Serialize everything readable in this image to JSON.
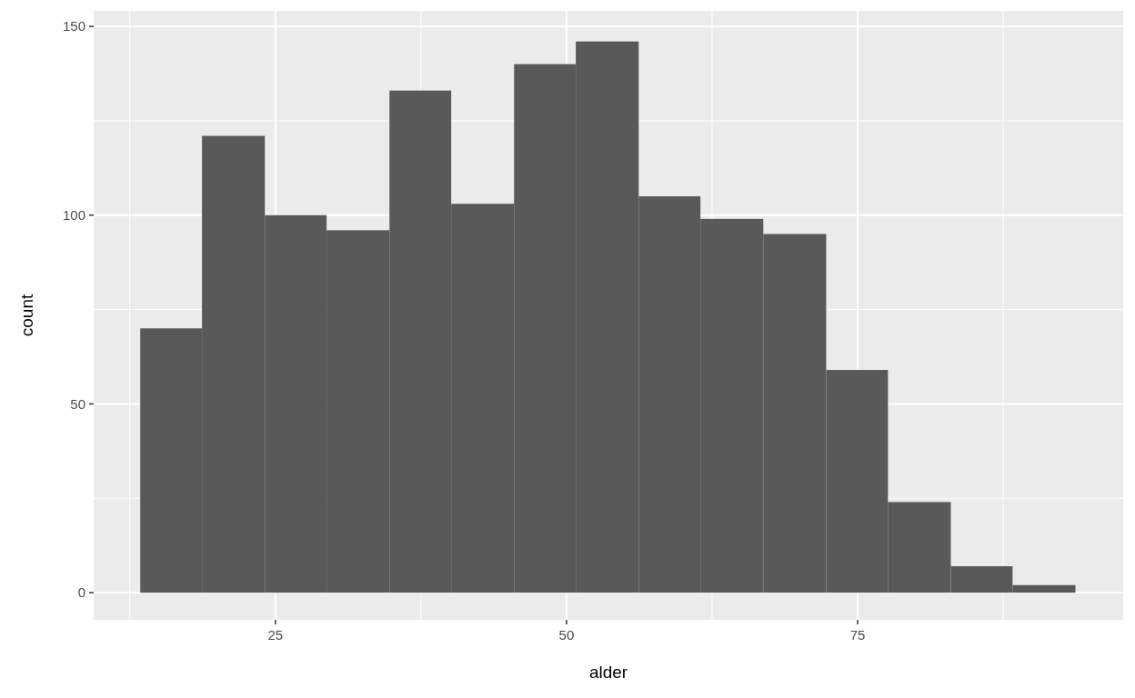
{
  "chart_data": {
    "type": "histogram",
    "xlabel": "alder",
    "ylabel": "count",
    "bins": [
      13.4,
      18.7,
      24.1,
      29.4,
      34.8,
      40.1,
      45.5,
      50.8,
      56.2,
      61.5,
      66.9,
      72.3,
      77.6,
      83.0,
      88.3,
      93.7
    ],
    "values": [
      70,
      121,
      100,
      96,
      133,
      103,
      140,
      146,
      105,
      99,
      95,
      59,
      24,
      7,
      2
    ],
    "color": "#595959",
    "xlim": [
      9.4,
      97.8
    ],
    "ylim": [
      -7.2,
      154.1
    ],
    "xticks": [
      {
        "value": 12.5,
        "label": null
      },
      25,
      {
        "value": 37.5,
        "label": null
      },
      50,
      {
        "value": 62.5,
        "label": null
      },
      75,
      {
        "value": 87.5,
        "label": null
      }
    ],
    "yticks": [
      0,
      {
        "value": 25,
        "label": null
      },
      50,
      {
        "value": 75,
        "label": null
      },
      100,
      {
        "value": 125,
        "label": null
      },
      150
    ],
    "grid": true
  }
}
